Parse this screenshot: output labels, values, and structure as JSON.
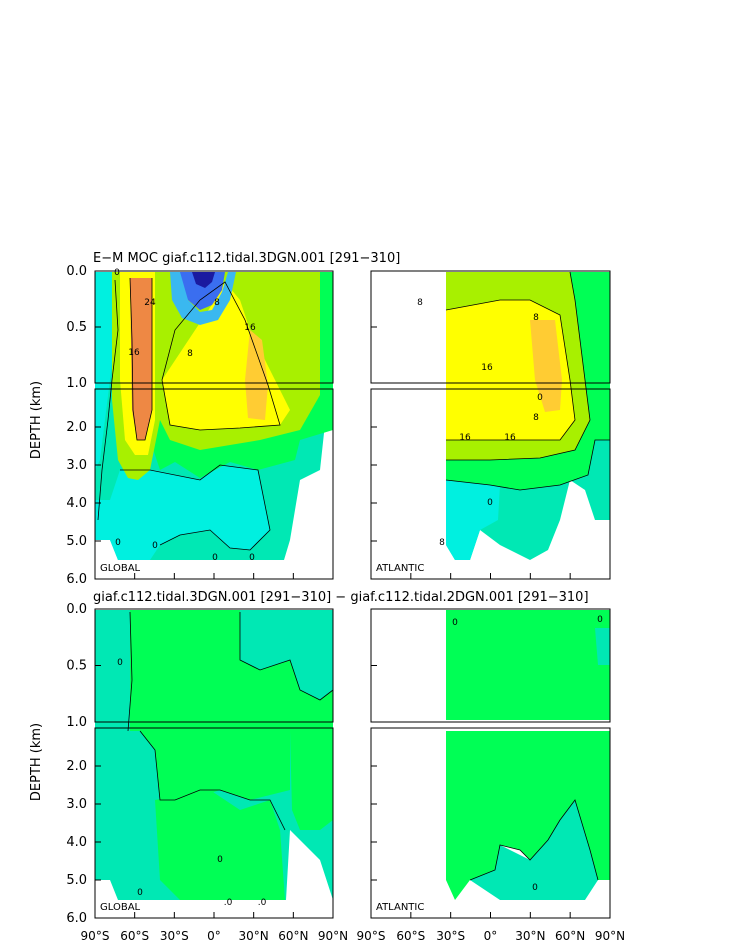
{
  "chart_data": [
    {
      "type": "contour",
      "title": "E−M MOC   giaf.c112.tidal.3DGN.001  [291−310]",
      "ylabel": "DEPTH (km)",
      "panels": [
        {
          "label": "GLOBAL",
          "basin": "global"
        },
        {
          "label": "ATLANTIC",
          "basin": "atlantic"
        }
      ],
      "y_ticks_upper": [
        "0.0",
        "0.5",
        "1.0"
      ],
      "y_ticks_lower": [
        "2.0",
        "3.0",
        "4.0",
        "5.0",
        "6.0"
      ],
      "ylim_km": [
        0,
        6
      ],
      "contour_labels": [
        "0",
        "8",
        "16",
        "24",
        "16",
        "8",
        "0",
        "8",
        "16",
        "8",
        "0",
        "16",
        "8",
        "16",
        "8",
        "0",
        "0",
        "0",
        "0"
      ]
    },
    {
      "type": "contour",
      "title": "giaf.c112.tidal.3DGN.001  [291−310]  −  giaf.c112.tidal.2DGN.001  [291−310]",
      "ylabel": "DEPTH (km)",
      "panels": [
        {
          "label": "GLOBAL",
          "basin": "global"
        },
        {
          "label": "ATLANTIC",
          "basin": "atlantic"
        }
      ],
      "y_ticks_upper": [
        "0.0",
        "0.5",
        "1.0"
      ],
      "y_ticks_lower": [
        "2.0",
        "3.0",
        "4.0",
        "5.0",
        "6.0"
      ],
      "ylim_km": [
        0,
        6
      ],
      "contour_labels": [
        "0",
        "0",
        "0",
        ".0",
        ".0",
        "0",
        "0",
        "0"
      ]
    }
  ],
  "x_axis_ticks": [
    "90°S",
    "60°S",
    "30°S",
    "0°",
    "30°N",
    "60°N",
    "90°N"
  ],
  "colors": {
    "deep_blue": "#1a1aa0",
    "blue": "#3a6ef0",
    "cyan": "#00f0e0",
    "teal": "#00e8b4",
    "green": "#00ff55",
    "lime": "#a8f000",
    "yellow": "#ffff00",
    "amber": "#ffcc33",
    "orange": "#ee8844"
  }
}
